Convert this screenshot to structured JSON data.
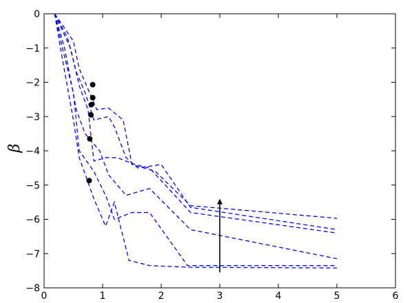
{
  "chart_data": {
    "type": "line",
    "ylabel": "β",
    "xlim": [
      0,
      6
    ],
    "xticks": [
      0,
      1,
      2,
      3,
      4,
      5,
      6
    ],
    "ylim": [
      -8,
      0
    ],
    "yticks": [
      {
        "value": -8,
        "label": "−8"
      },
      {
        "value": -7,
        "label": "−7"
      },
      {
        "value": -6,
        "label": "−6"
      },
      {
        "value": -5,
        "label": "−5"
      },
      {
        "value": -4,
        "label": "−4"
      },
      {
        "value": -3,
        "label": "−3"
      },
      {
        "value": -2,
        "label": "−2"
      },
      {
        "value": -1,
        "label": "−1"
      },
      0
    ],
    "dashed": true,
    "series": [
      {
        "color": "#0000ff",
        "x": [
          0.18,
          0.5,
          0.6,
          0.8,
          0.9,
          1.1,
          1.35,
          1.5,
          1.9,
          2.5,
          5
        ],
        "values": [
          0,
          -0.8,
          -1.6,
          -2.4,
          -2.8,
          -2.75,
          -3.1,
          -4.4,
          -4.6,
          -5.6,
          -5.97
        ]
      },
      {
        "color": "#0000ff",
        "x": [
          0.18,
          0.4,
          0.55,
          0.7,
          0.85,
          1.1,
          1.2,
          1.4,
          1.6,
          2.0,
          2.5,
          5
        ],
        "values": [
          0,
          -0.7,
          -1.7,
          -2.3,
          -3.1,
          -3.0,
          -3.3,
          -4.2,
          -4.5,
          -4.4,
          -5.65,
          -6.3
        ]
      },
      {
        "color": "#0000ff",
        "x": [
          0.18,
          0.45,
          0.6,
          0.75,
          0.85,
          1.05,
          1.25,
          1.55,
          1.8,
          2.5,
          5
        ],
        "values": [
          0,
          -1.0,
          -2.1,
          -2.8,
          -4.3,
          -4.2,
          -4.2,
          -4.4,
          -4.5,
          -5.8,
          -6.4
        ]
      },
      {
        "color": "#0000ff",
        "x": [
          0.18,
          0.35,
          0.55,
          0.7,
          0.95,
          1.1,
          1.4,
          1.8,
          2.5,
          5
        ],
        "values": [
          0,
          -1.0,
          -2.8,
          -3.5,
          -4.0,
          -4.7,
          -5.3,
          -5.1,
          -6.3,
          -7.15
        ]
      },
      {
        "color": "#0000ff",
        "x": [
          0.18,
          0.3,
          0.5,
          0.6,
          0.85,
          1.05,
          1.2,
          1.5,
          1.8,
          2.45,
          5
        ],
        "values": [
          0,
          -0.9,
          -2.3,
          -4.0,
          -4.6,
          -5.3,
          -6.0,
          -5.8,
          -5.8,
          -7.35,
          -7.35
        ]
      },
      {
        "color": "#0000ff",
        "x": [
          0.18,
          0.3,
          0.5,
          0.6,
          0.85,
          1.05,
          1.2,
          1.45,
          1.8,
          2.5,
          5
        ],
        "values": [
          0,
          -1.2,
          -3.1,
          -4.2,
          -5.4,
          -6.2,
          -5.5,
          -7.2,
          -7.35,
          -7.4,
          -7.42
        ]
      }
    ],
    "points": {
      "color": "#000000",
      "x": [
        0.83,
        0.83,
        0.81,
        0.8,
        0.78,
        0.77
      ],
      "values": [
        -2.07,
        -2.45,
        -2.65,
        -2.95,
        -3.65,
        -4.87
      ]
    },
    "arrow": {
      "color": "#000000",
      "x": 3,
      "y": [
        -7.55,
        -5.4
      ]
    }
  }
}
